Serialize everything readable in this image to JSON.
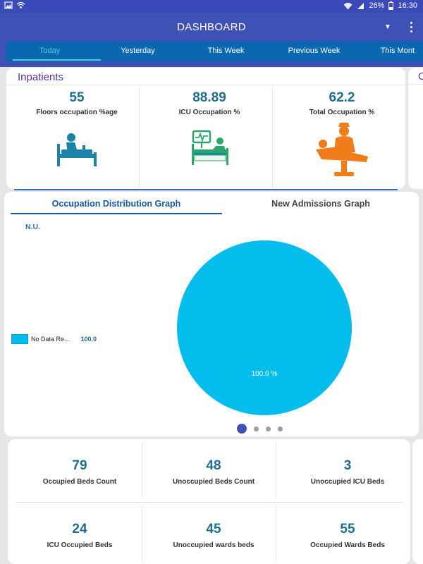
{
  "status_bar": {
    "battery": "26%",
    "time": "16:30",
    "icons": [
      "image-icon",
      "wifi-hotspot-icon",
      "wifi-icon",
      "signal-icon",
      "battery-icon"
    ]
  },
  "app_bar": {
    "title": "DASHBOARD"
  },
  "period_tabs": [
    {
      "label": "Today",
      "active": true
    },
    {
      "label": "Yesterday"
    },
    {
      "label": "This Week"
    },
    {
      "label": "Previous Week"
    },
    {
      "label": "This Mont"
    }
  ],
  "inpatients": {
    "title": "Inpatients",
    "next_card_letter": "O",
    "metrics": [
      {
        "value": "55",
        "label": "Floors occupation %age",
        "icon": "patient-bed-icon"
      },
      {
        "value": "88.89",
        "label": "ICU Occupation %",
        "icon": "icu-bed-monitor-icon"
      },
      {
        "value": "62.2",
        "label": "Total Occupation %",
        "icon": "nurse-patient-icon"
      }
    ]
  },
  "graph": {
    "tabs": [
      "Occupation Distribution Graph",
      "New Admissions Graph"
    ],
    "active_tab": 0,
    "section_label": "N.U.",
    "legend": {
      "label": "No Data Re...",
      "value": "100.0"
    },
    "slice_label": "100.0 %",
    "pager": {
      "count": 4,
      "active": 0
    },
    "colors": {
      "slice": "#05bdec"
    }
  },
  "chart_data": {
    "type": "pie",
    "title": "",
    "slices": [
      {
        "label": "No Data Re...",
        "value": 100.0,
        "percent_label": "100.0 %"
      }
    ]
  },
  "bed_stats": [
    {
      "value": "79",
      "label": "Occupied Beds Count"
    },
    {
      "value": "48",
      "label": "Unoccupied Beds Count"
    },
    {
      "value": "3",
      "label": "Unoccupied ICU Beds"
    },
    {
      "value": "24",
      "label": "ICU Occupied Beds"
    },
    {
      "value": "45",
      "label": "Unoccupied wards beds"
    },
    {
      "value": "55",
      "label": "Occupied Wards Beds"
    }
  ],
  "colors": {
    "header": "#3f51b5",
    "tab_strip": "#0a67b0",
    "active_tab": "#4bd1d6",
    "value_text": "#1f6e8d",
    "section_title": "#5b2fa8"
  }
}
